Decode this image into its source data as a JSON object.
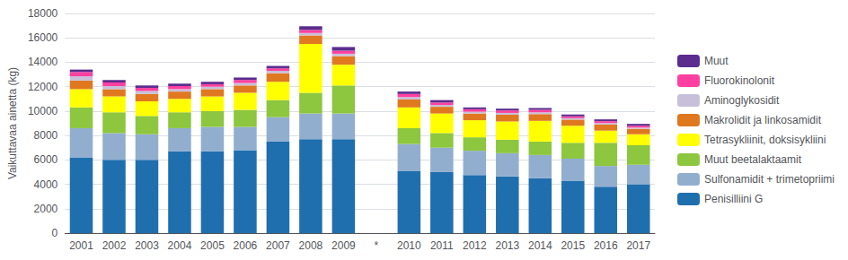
{
  "chart_data": {
    "type": "bar",
    "stacked": true,
    "ylabel": "Vaikuttavaa ainetta (kg)",
    "categories": [
      "2001",
      "2002",
      "2003",
      "2004",
      "2005",
      "2006",
      "2007",
      "2008",
      "2009",
      "*",
      "2010",
      "2011",
      "2012",
      "2013",
      "2014",
      "2015",
      "2016",
      "2017"
    ],
    "series": [
      {
        "name": "Penisilliini G",
        "color": "#1F6FAE",
        "values": [
          6200,
          6000,
          6000,
          6700,
          6700,
          6800,
          7500,
          7700,
          7700,
          null,
          5100,
          5000,
          4750,
          4650,
          4500,
          4300,
          3800,
          4000
        ]
      },
      {
        "name": "Sulfonamidit + trimetopriimi",
        "color": "#92AECF",
        "values": [
          2400,
          2200,
          2100,
          1900,
          2000,
          1900,
          2000,
          2100,
          2100,
          null,
          2200,
          2000,
          2000,
          1900,
          1900,
          1800,
          1700,
          1600
        ]
      },
      {
        "name": "Muut beetalaktaamit",
        "color": "#8DC63F",
        "values": [
          1700,
          1700,
          1500,
          1300,
          1300,
          1400,
          1400,
          1700,
          2300,
          null,
          1300,
          1200,
          1100,
          1100,
          1100,
          1300,
          1900,
          1600
        ]
      },
      {
        "name": "Tetrasykliinit, doksisykliini",
        "color": "#FFFF00",
        "values": [
          1500,
          1300,
          1200,
          1100,
          1200,
          1400,
          1500,
          4000,
          1700,
          null,
          1700,
          1600,
          1400,
          1500,
          1700,
          1400,
          1000,
          900
        ]
      },
      {
        "name": "Makrolidit ja linkosamidit",
        "color": "#E07820",
        "values": [
          700,
          600,
          600,
          600,
          600,
          600,
          700,
          700,
          700,
          null,
          650,
          550,
          550,
          550,
          550,
          500,
          500,
          450
        ]
      },
      {
        "name": "Aminoglykosidit",
        "color": "#C8C0D8",
        "values": [
          350,
          250,
          250,
          200,
          200,
          200,
          200,
          200,
          200,
          null,
          200,
          150,
          150,
          150,
          150,
          120,
          120,
          100
        ]
      },
      {
        "name": "Fluorokinolonit",
        "color": "#FF40A0",
        "values": [
          350,
          300,
          250,
          250,
          200,
          250,
          200,
          250,
          250,
          null,
          250,
          200,
          200,
          200,
          200,
          150,
          150,
          150
        ]
      },
      {
        "name": "Muut",
        "color": "#5B2D8E",
        "values": [
          200,
          200,
          200,
          200,
          200,
          200,
          200,
          300,
          300,
          null,
          200,
          200,
          150,
          150,
          150,
          150,
          150,
          150
        ]
      }
    ],
    "ylim": [
      0,
      18000
    ],
    "yticks": [
      0,
      2000,
      4000,
      6000,
      8000,
      10000,
      12000,
      14000,
      16000,
      18000
    ],
    "grid": true,
    "legend": "right"
  }
}
